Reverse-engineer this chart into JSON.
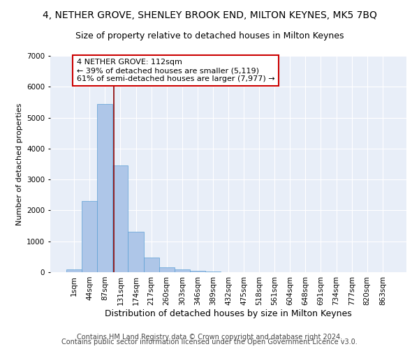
{
  "title": "4, NETHER GROVE, SHENLEY BROOK END, MILTON KEYNES, MK5 7BQ",
  "subtitle": "Size of property relative to detached houses in Milton Keynes",
  "xlabel": "Distribution of detached houses by size in Milton Keynes",
  "ylabel": "Number of detached properties",
  "footnote1": "Contains HM Land Registry data © Crown copyright and database right 2024.",
  "footnote2": "Contains public sector information licensed under the Open Government Licence v3.0.",
  "bar_labels": [
    "1sqm",
    "44sqm",
    "87sqm",
    "131sqm",
    "174sqm",
    "217sqm",
    "260sqm",
    "303sqm",
    "346sqm",
    "389sqm",
    "432sqm",
    "475sqm",
    "518sqm",
    "561sqm",
    "604sqm",
    "648sqm",
    "691sqm",
    "734sqm",
    "777sqm",
    "820sqm",
    "863sqm"
  ],
  "bar_values": [
    80,
    2300,
    5450,
    3450,
    1320,
    470,
    155,
    90,
    55,
    30,
    0,
    0,
    0,
    0,
    0,
    0,
    0,
    0,
    0,
    0,
    0
  ],
  "bar_color": "#aec6e8",
  "bar_edge_color": "#5a9fd4",
  "vline_x": 2.55,
  "vline_color": "#8b0000",
  "annotation_text": "4 NETHER GROVE: 112sqm\n← 39% of detached houses are smaller (5,119)\n61% of semi-detached houses are larger (7,977) →",
  "annotation_box_color": "#ffffff",
  "annotation_box_edge": "#cc0000",
  "ylim": [
    0,
    7000
  ],
  "yticks": [
    0,
    1000,
    2000,
    3000,
    4000,
    5000,
    6000,
    7000
  ],
  "background_color": "#e8eef8",
  "grid_color": "#ffffff",
  "title_fontsize": 10,
  "subtitle_fontsize": 9,
  "xlabel_fontsize": 9,
  "ylabel_fontsize": 8,
  "tick_fontsize": 7.5,
  "annot_fontsize": 8,
  "footnote_fontsize": 7
}
